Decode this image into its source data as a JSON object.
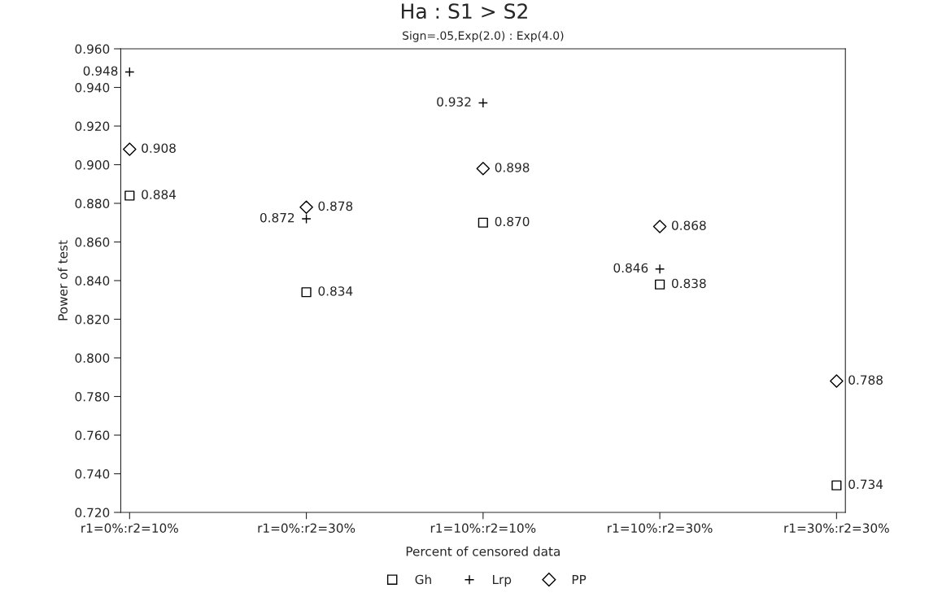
{
  "chart_data": {
    "type": "scatter",
    "title": "Ha : S1 > S2",
    "subtitle": "Sign=.05,Exp(2.0) : Exp(4.0)",
    "xlabel": "Percent of censored data",
    "ylabel": "Power of test",
    "categories": [
      "r1=0%:r2=10%",
      "r1=0%:r2=30%",
      "r1=10%:r2=10%",
      "r1=10%:r2=30%",
      "r1=30%:r2=30%"
    ],
    "series": [
      {
        "name": "Gh",
        "color": "#000000",
        "marker": "square",
        "values": [
          0.884,
          0.834,
          0.87,
          0.838,
          0.734
        ],
        "value_labels": [
          "0.884",
          "0.834",
          "0.870",
          "0.838",
          "0.734"
        ]
      },
      {
        "name": "Lrp",
        "color": "#000000",
        "marker": "cross",
        "values": [
          0.948,
          0.872,
          0.932,
          0.846,
          null
        ],
        "value_labels": [
          "0.948",
          "0.872",
          "0.932",
          "0.846",
          null
        ]
      },
      {
        "name": "PP",
        "color": "#000000",
        "marker": "diamond",
        "values": [
          0.908,
          0.878,
          0.898,
          0.868,
          0.788
        ],
        "value_labels": [
          "0.908",
          "0.878",
          "0.898",
          "0.868",
          "0.788"
        ]
      }
    ],
    "ylim": [
      0.72,
      0.96
    ],
    "yticks": [
      {
        "value": 0.72,
        "label": "0.720"
      },
      {
        "value": 0.74,
        "label": "0.740"
      },
      {
        "value": 0.76,
        "label": "0.760"
      },
      {
        "value": 0.78,
        "label": "0.780"
      },
      {
        "value": 0.8,
        "label": "0.800"
      },
      {
        "value": 0.82,
        "label": "0.820"
      },
      {
        "value": 0.84,
        "label": "0.840"
      },
      {
        "value": 0.86,
        "label": "0.860"
      },
      {
        "value": 0.88,
        "label": "0.880"
      },
      {
        "value": 0.9,
        "label": "0.900"
      },
      {
        "value": 0.92,
        "label": "0.920"
      },
      {
        "value": 0.94,
        "label": "0.940"
      },
      {
        "value": 0.96,
        "label": "0.960"
      }
    ],
    "grid": false,
    "legend": "bottom"
  }
}
